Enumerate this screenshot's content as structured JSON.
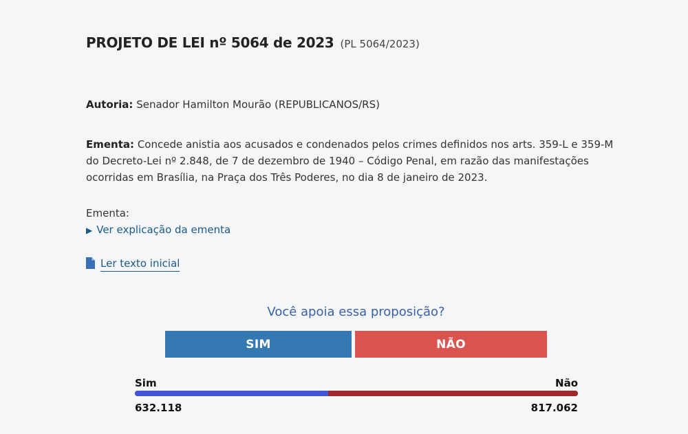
{
  "header": {
    "title": "PROJETO DE LEI nº 5064 de 2023",
    "abbreviation": "(PL 5064/2023)"
  },
  "autoria": {
    "label": "Autoria:",
    "value": "Senador Hamilton Mourão (REPUBLICANOS/RS)"
  },
  "ementa": {
    "label": "Ementa:",
    "value": "Concede anistia aos acusados e condenados pelos crimes definidos nos arts. 359-L e 359-M do Decreto-Lei nº 2.848, de 7 de dezembro de 1940 – Código Penal, em razão das manifestações ocorridas em Brasília, na Praça dos Três Poderes, no dia 8 de janeiro de 2023.",
    "explain_label": "Ementa:",
    "explain_link": "Ver explicação da ementa",
    "explain_icon": "triangle-right-icon"
  },
  "documents": {
    "text_link": "Ler texto inicial",
    "icon": "document-icon"
  },
  "poll": {
    "question": "Você apoia essa proposição?",
    "yes_label": "SIM",
    "no_label": "NÃO",
    "yes_color": "#3579b3",
    "no_color": "#d9534f"
  },
  "results": {
    "yes_label": "Sim",
    "no_label": "Não",
    "yes_count": "632.118",
    "no_count": "817.062",
    "yes_value": 632118,
    "no_value": 817062,
    "yes_bar_color": "#4256d6",
    "no_bar_color": "#9e2a2b"
  }
}
